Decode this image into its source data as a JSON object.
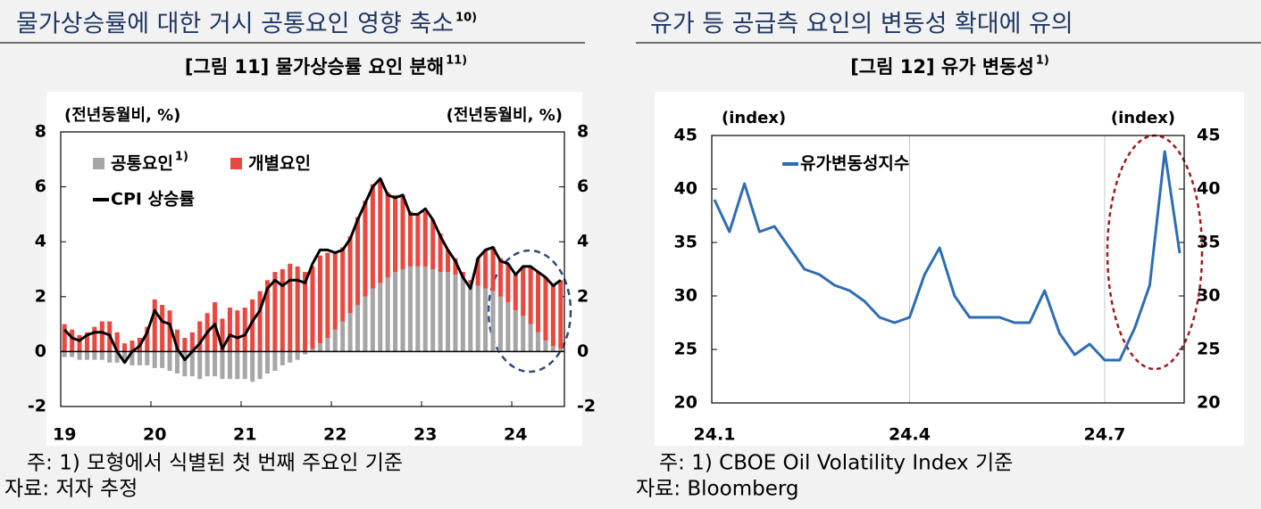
{
  "sections": [
    {
      "heading": "물가상승률에 대한 거시 공통요인 영향 축소",
      "heading_note": "10)"
    },
    {
      "heading": "유가 등 공급측 요인의 변동성 확대에 유의"
    }
  ],
  "chart_data": [
    {
      "type": "bar",
      "stacked": true,
      "title": "[그림 11] 물가상승률 요인 분해",
      "title_note": "11)",
      "y_label": "(전년동월비, %)",
      "y2_label": "(전년동월비, %)",
      "note": "주: 1) 모형에서 식별된 첫 번째 주요인 기준",
      "source": "자료: 저자 추정",
      "categories": [
        "19",
        null,
        null,
        null,
        null,
        null,
        null,
        null,
        null,
        null,
        null,
        null,
        "20",
        null,
        null,
        null,
        null,
        null,
        null,
        null,
        null,
        null,
        null,
        null,
        "21",
        null,
        null,
        null,
        null,
        null,
        null,
        null,
        null,
        null,
        null,
        null,
        "22",
        null,
        null,
        null,
        null,
        null,
        null,
        null,
        null,
        null,
        null,
        null,
        "23",
        null,
        null,
        null,
        null,
        null,
        null,
        null,
        null,
        null,
        null,
        null,
        "24",
        null,
        null,
        null,
        null,
        null,
        null
      ],
      "series": [
        {
          "name": "공통요인",
          "name_note": "1)",
          "color": "#a6a6a6",
          "values": [
            -0.2,
            -0.2,
            -0.3,
            -0.3,
            -0.3,
            -0.3,
            -0.4,
            -0.4,
            -0.4,
            -0.5,
            -0.5,
            -0.5,
            -0.6,
            -0.6,
            -0.7,
            -0.8,
            -0.9,
            -0.9,
            -1.0,
            -0.9,
            -0.9,
            -1.0,
            -1.0,
            -1.0,
            -1.0,
            -1.1,
            -1.0,
            -0.8,
            -0.7,
            -0.5,
            -0.4,
            -0.3,
            -0.1,
            0.1,
            0.3,
            0.5,
            0.8,
            1.1,
            1.4,
            1.7,
            2.0,
            2.3,
            2.5,
            2.7,
            2.9,
            3.0,
            3.1,
            3.1,
            3.1,
            3.0,
            2.9,
            2.9,
            2.8,
            2.7,
            2.5,
            2.4,
            2.3,
            2.2,
            2.0,
            1.8,
            1.5,
            1.3,
            1.0,
            0.7,
            0.4,
            0.2,
            0.1
          ]
        },
        {
          "name": "개별요인",
          "color": "#e8483f",
          "values": [
            1.0,
            0.8,
            0.6,
            0.7,
            0.9,
            1.1,
            1.1,
            0.7,
            0.3,
            0.4,
            0.5,
            0.9,
            1.9,
            1.7,
            1.5,
            0.8,
            0.5,
            0.7,
            1.1,
            1.4,
            1.8,
            1.2,
            1.6,
            1.5,
            1.6,
            1.9,
            2.2,
            2.6,
            2.9,
            3.0,
            3.2,
            3.1,
            2.9,
            3.0,
            3.2,
            3.1,
            2.8,
            2.7,
            2.8,
            3.2,
            3.5,
            3.8,
            3.8,
            3.1,
            2.8,
            2.7,
            2.0,
            1.9,
            2.0,
            1.8,
            1.4,
            0.8,
            0.6,
            0.2,
            0.1,
            1.0,
            1.4,
            1.6,
            1.4,
            1.4,
            1.3,
            1.8,
            2.1,
            2.2,
            2.3,
            2.2,
            2.5
          ]
        },
        {
          "name": "CPI 상승률",
          "type": "line",
          "color": "#000000",
          "values": [
            0.8,
            0.5,
            0.4,
            0.6,
            0.7,
            0.7,
            0.6,
            0.0,
            -0.4,
            0.0,
            0.2,
            0.7,
            1.5,
            1.1,
            1.0,
            0.1,
            -0.3,
            0.0,
            0.3,
            0.7,
            1.0,
            0.1,
            0.6,
            0.5,
            0.6,
            1.1,
            1.5,
            2.3,
            2.6,
            2.4,
            2.6,
            2.6,
            2.5,
            3.2,
            3.7,
            3.7,
            3.6,
            3.7,
            4.1,
            4.8,
            5.4,
            6.0,
            6.3,
            5.7,
            5.6,
            5.7,
            5.0,
            5.0,
            5.2,
            4.8,
            4.2,
            3.7,
            3.3,
            2.7,
            2.3,
            3.4,
            3.7,
            3.8,
            3.3,
            3.2,
            2.8,
            3.1,
            3.1,
            2.9,
            2.7,
            2.4,
            2.6
          ]
        }
      ],
      "ylim": [
        -2,
        8
      ],
      "yticks": [
        -2,
        0,
        2,
        4,
        6,
        8
      ],
      "y2lim": [
        -2,
        8
      ],
      "y2ticks": [
        -2,
        0,
        2,
        4,
        6,
        8
      ],
      "legend": "upper left",
      "xgrid": false
    },
    {
      "type": "line",
      "title": "[그림 12] 유가 변동성",
      "title_note": "1)",
      "y_label": "(index)",
      "y2_label": "(index)",
      "note": "주: 1) CBOE Oil Volatility Index 기준",
      "source": "자료: Bloomberg",
      "categories": [
        "24.1",
        null,
        null,
        null,
        null,
        null,
        null,
        null,
        null,
        null,
        null,
        null,
        null,
        "24.4",
        null,
        null,
        null,
        null,
        null,
        null,
        null,
        null,
        null,
        null,
        null,
        null,
        "24.7",
        null,
        null,
        null,
        null,
        null
      ],
      "series": [
        {
          "name": "유가변동성지수",
          "color": "#2e6db4",
          "values": [
            39,
            36,
            40.5,
            36,
            36.5,
            34.5,
            32.5,
            32,
            31,
            30.5,
            29.5,
            28,
            27.5,
            28,
            32,
            34.5,
            30,
            28,
            28,
            28,
            27.5,
            27.5,
            30.5,
            26.5,
            24.5,
            25.5,
            24,
            24,
            27,
            31,
            43.5,
            34
          ]
        }
      ],
      "ylim": [
        20,
        45
      ],
      "yticks": [
        20,
        25,
        30,
        35,
        40,
        45
      ],
      "y2lim": [
        20,
        45
      ],
      "y2ticks": [
        20,
        25,
        30,
        35,
        40,
        45
      ],
      "legend": "upper left",
      "xgrid": true
    }
  ]
}
